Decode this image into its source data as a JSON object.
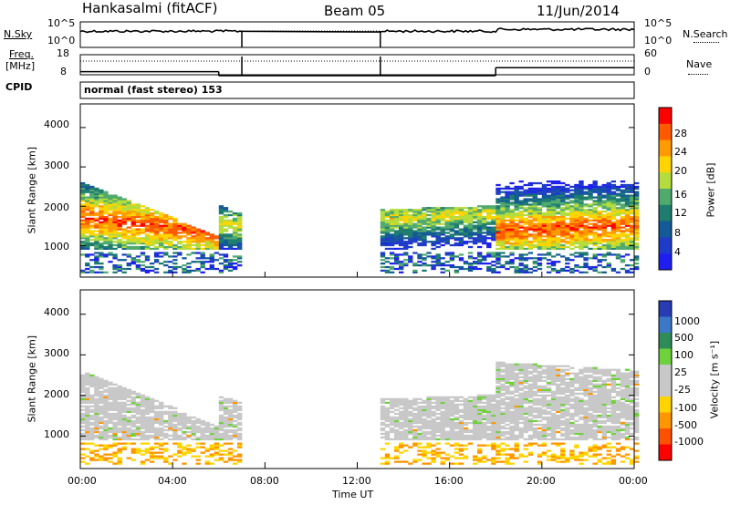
{
  "header": {
    "station": "Hankasalmi (fitACF)",
    "beam": "Beam 05",
    "date": "11/Jun/2014"
  },
  "noise_panel": {
    "left_label": "N.Sky",
    "left_ticks": [
      "10^5",
      "10^0"
    ],
    "right_label": "N.Search",
    "right_ticks": [
      "10^5",
      "10^0"
    ]
  },
  "freq_panel": {
    "left_label_1": "Freq.",
    "left_label_2": "[MHz]",
    "left_ticks": [
      "18",
      "8"
    ],
    "right_label": "Nave",
    "right_ticks": [
      "60",
      "0"
    ]
  },
  "cpid_panel": {
    "label": "CPID",
    "text": "normal (fast stereo) 153"
  },
  "power_panel": {
    "ylabel": "Slant Range [km]",
    "colorbar_label": "Power [dB]",
    "colorbar_ticks": [
      "28",
      "24",
      "20",
      "16",
      "12",
      "8",
      "4"
    ],
    "colorbar_colors": [
      "#ff0000",
      "#ff5a00",
      "#ff9a00",
      "#ffd400",
      "#b4dc3c",
      "#50aa6e",
      "#1e7d6e",
      "#145a96",
      "#1e3cc8",
      "#1e1ef0"
    ]
  },
  "velocity_panel": {
    "ylabel": "Slant Range [km]",
    "colorbar_label": "Velocity [m s⁻¹]",
    "colorbar_ticks": [
      "1000",
      "500",
      "100",
      "25",
      "-25",
      "-100",
      "-500",
      "-1000"
    ],
    "colorbar_colors": [
      "#283cb4",
      "#3c78c8",
      "#2e8c58",
      "#6ed23c",
      "#c8c8c8",
      "#c8c8c8",
      "#ffd400",
      "#ff9600",
      "#ff5000",
      "#ff0000"
    ]
  },
  "axes": {
    "y_ticks": [
      "1000",
      "2000",
      "3000",
      "4000"
    ],
    "x_ticks": [
      "00:00",
      "04:00",
      "08:00",
      "12:00",
      "16:00",
      "20:00",
      "00:00"
    ],
    "xlabel": "Time UT"
  },
  "chart_data": {
    "type": "heatmap",
    "title": "Hankasalmi (fitACF)  Beam 05  11/Jun/2014",
    "xlabel": "Time UT",
    "ylabel": "Slant Range [km]",
    "x_range_hours": [
      0,
      24
    ],
    "y_range_km": [
      200,
      4600
    ],
    "data_gaps_hours": [
      [
        7,
        13
      ]
    ],
    "power_db_scale": [
      0,
      30
    ],
    "velocity_scale_m_s": [
      -1000,
      1000
    ],
    "echo_bands": [
      {
        "t_start": 0.0,
        "t_end": 6.0,
        "range_top_km": [
          2600,
          1200
        ],
        "peak_km": [
          1700,
          1300
        ],
        "peak_power_db": 28
      },
      {
        "t_start": 6.0,
        "t_end": 7.0,
        "range_top_km": [
          2000,
          1800
        ],
        "peak_km": [
          1500,
          1500
        ],
        "peak_power_db": 20
      },
      {
        "t_start": 13.0,
        "t_end": 18.0,
        "range_top_km": [
          1900,
          2000
        ],
        "peak_km": [
          1650,
          1800
        ],
        "peak_power_db": 20
      },
      {
        "t_start": 18.0,
        "t_end": 24.0,
        "range_top_km": [
          2800,
          2600
        ],
        "peak_km": [
          1350,
          1500
        ],
        "peak_power_db": 28
      }
    ],
    "freq_mhz_levels": [
      {
        "t_start": 0,
        "t_end": 6,
        "value": 10
      },
      {
        "t_start": 6,
        "t_end": 18,
        "value": 8
      },
      {
        "t_start": 18,
        "t_end": 24,
        "value": 12
      }
    ],
    "cpid": 153
  }
}
